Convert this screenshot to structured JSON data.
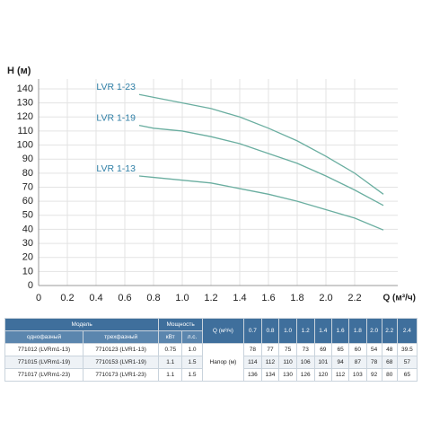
{
  "chart_data": {
    "type": "line",
    "y_label": "H (м)",
    "x_label": "Q (м³/ч)",
    "x": [
      0.7,
      0.8,
      1.0,
      1.2,
      1.4,
      1.6,
      1.8,
      2.0,
      2.2,
      2.4
    ],
    "series": [
      {
        "name": "LVR 1-13",
        "color": "#6aaea0",
        "values": [
          78,
          77,
          75,
          73,
          69,
          65,
          60,
          54,
          48,
          39.5
        ]
      },
      {
        "name": "LVR 1-19",
        "color": "#6aaea0",
        "values": [
          114,
          112,
          110,
          106,
          101,
          94,
          87,
          78,
          68,
          57
        ]
      },
      {
        "name": "LVR 1-23",
        "color": "#6aaea0",
        "values": [
          136,
          134,
          130,
          126,
          120,
          112,
          103,
          92,
          80,
          65
        ]
      }
    ],
    "label_color": "#2f7fa6",
    "xlim": [
      0,
      2.5
    ],
    "xticks": [
      0,
      0.2,
      0.4,
      0.6,
      0.8,
      {
        "value": 1,
        "label": "1.0"
      },
      1.2,
      1.4,
      1.6,
      1.8,
      {
        "value": 2,
        "label": "2.0"
      },
      2.2
    ],
    "ylim": [
      0,
      140
    ],
    "yticks": [
      0,
      10,
      20,
      30,
      40,
      50,
      60,
      70,
      80,
      90,
      100,
      110,
      120,
      130,
      140
    ],
    "grid": true
  },
  "table": {
    "model": "Модель",
    "power": "Мощность",
    "q": "Q (м³/ч)",
    "sub": [
      "однофазный",
      "трехфазный",
      "кВт",
      "л.с."
    ],
    "q_values": [
      "0.7",
      "0.8",
      "1.0",
      "1.2",
      "1.4",
      "1.6",
      "1.8",
      "2.0",
      "2.2",
      "2.4"
    ],
    "head_label": "Напор (м)",
    "rows": [
      [
        "771012 (LVRm1-13)",
        "7710123 (LVR1-13)",
        "0.75",
        "1.0",
        "78",
        "77",
        "75",
        "73",
        "69",
        "65",
        "60",
        "54",
        "48",
        "39.5"
      ],
      [
        "771015 (LVRm1-19)",
        "7710153 (LVR1-19)",
        "1.1",
        "1.5",
        "114",
        "112",
        "110",
        "106",
        "101",
        "94",
        "87",
        "78",
        "68",
        "57"
      ],
      [
        "771017 (LVRm1-23)",
        "7710173 (LVR1-23)",
        "1.1",
        "1.5",
        "136",
        "134",
        "130",
        "126",
        "120",
        "112",
        "103",
        "92",
        "80",
        "65"
      ]
    ]
  }
}
